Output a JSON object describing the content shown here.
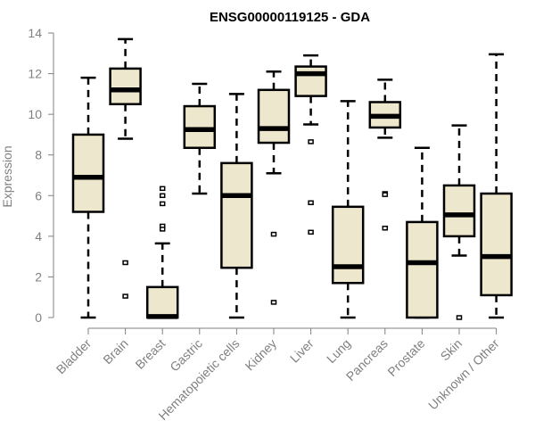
{
  "chart_data": {
    "type": "boxplot",
    "title": "ENSG00000119125 - GDA",
    "xlabel": "",
    "ylabel": "Expression",
    "ylim": [
      0,
      14
    ],
    "yticks": [
      0,
      2,
      4,
      6,
      8,
      10,
      12,
      14
    ],
    "grid": false,
    "legend": "none",
    "colors": {
      "box_fill": "#ede7cd",
      "stroke": "#000000",
      "axis": "#808080"
    },
    "categories": [
      "Bladder",
      "Brain",
      "Breast",
      "Gastric",
      "Hematopoietic cells",
      "Kidney",
      "Liver",
      "Lung",
      "Pancreas",
      "Prostate",
      "Skin",
      "Unknown / Other"
    ],
    "boxes": [
      {
        "category": "Bladder",
        "whisker_low": 0.0,
        "q1": 5.2,
        "median": 6.9,
        "q3": 9.0,
        "whisker_high": 11.8,
        "outliers": []
      },
      {
        "category": "Brain",
        "whisker_low": 8.8,
        "q1": 10.5,
        "median": 11.2,
        "q3": 12.25,
        "whisker_high": 13.7,
        "outliers": [
          2.7,
          1.05
        ]
      },
      {
        "category": "Breast",
        "whisker_low": 0.0,
        "q1": 0.0,
        "median": 0.05,
        "q3": 1.5,
        "whisker_high": 3.65,
        "outliers": [
          6.35,
          6.0,
          5.6,
          4.5,
          4.35
        ]
      },
      {
        "category": "Gastric",
        "whisker_low": 6.1,
        "q1": 8.35,
        "median": 9.25,
        "q3": 10.4,
        "whisker_high": 11.5,
        "outliers": []
      },
      {
        "category": "Hematopoietic cells",
        "whisker_low": 0.0,
        "q1": 2.45,
        "median": 6.0,
        "q3": 7.6,
        "whisker_high": 11.0,
        "outliers": []
      },
      {
        "category": "Kidney",
        "whisker_low": 7.1,
        "q1": 8.6,
        "median": 9.3,
        "q3": 11.2,
        "whisker_high": 12.1,
        "outliers": [
          4.1,
          0.75
        ]
      },
      {
        "category": "Liver",
        "whisker_low": 9.5,
        "q1": 10.9,
        "median": 12.0,
        "q3": 12.35,
        "whisker_high": 12.9,
        "outliers": [
          8.65,
          5.65,
          4.2
        ]
      },
      {
        "category": "Lung",
        "whisker_low": 0.0,
        "q1": 1.7,
        "median": 2.5,
        "q3": 5.45,
        "whisker_high": 10.65,
        "outliers": []
      },
      {
        "category": "Pancreas",
        "whisker_low": 8.85,
        "q1": 9.35,
        "median": 9.9,
        "q3": 10.6,
        "whisker_high": 11.7,
        "outliers": [
          6.1,
          6.05,
          4.4
        ]
      },
      {
        "category": "Prostate",
        "whisker_low": 0.0,
        "q1": 0.0,
        "median": 2.7,
        "q3": 4.7,
        "whisker_high": 8.35,
        "outliers": []
      },
      {
        "category": "Skin",
        "whisker_low": 3.05,
        "q1": 4.0,
        "median": 5.05,
        "q3": 6.5,
        "whisker_high": 9.45,
        "outliers": [
          0.0
        ]
      },
      {
        "category": "Unknown / Other",
        "whisker_low": 0.0,
        "q1": 1.1,
        "median": 3.0,
        "q3": 6.1,
        "whisker_high": 12.95,
        "outliers": []
      }
    ]
  }
}
